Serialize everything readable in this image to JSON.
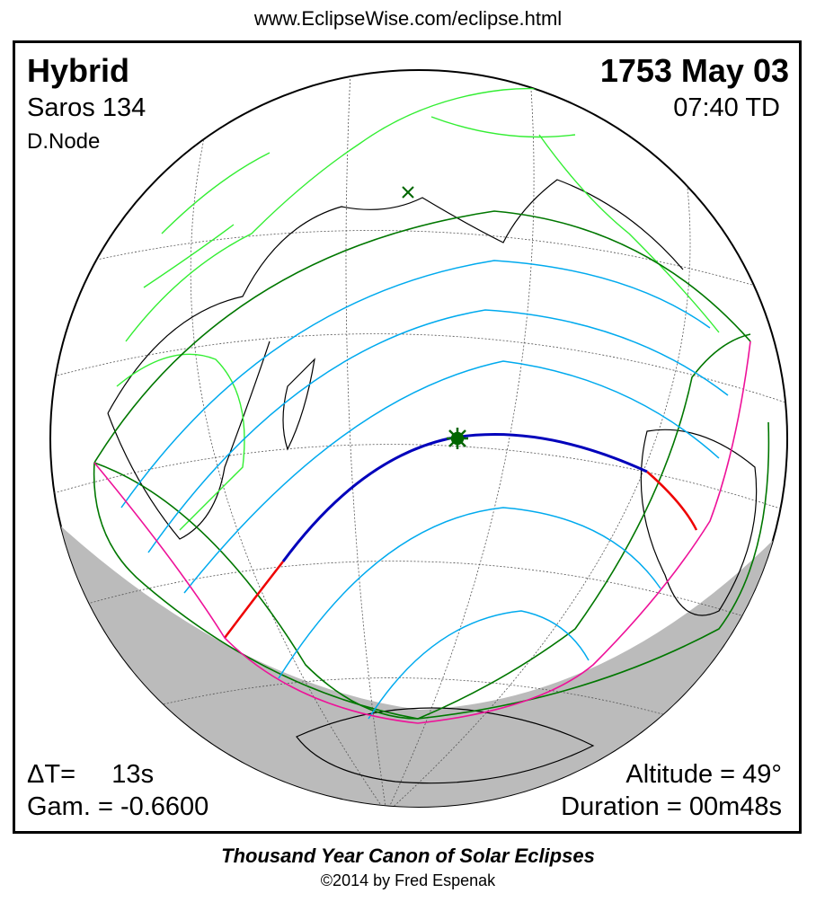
{
  "header": {
    "url": "www.EclipseWise.com/eclipse.html"
  },
  "info": {
    "type": "Hybrid",
    "saros": "Saros 134",
    "node": "D.Node",
    "date": "1753 May 03",
    "time": "07:40 TD",
    "delta_t": "ΔT=     13s",
    "gamma": "Gam. = -0.6600",
    "altitude": "Altitude = 49°",
    "duration": "Duration = 00m48s"
  },
  "footer": {
    "canon": "Thousand Year Canon of Solar Eclipses",
    "copyright": "©2014 by Fred Espenak"
  },
  "colors": {
    "borders": "#33ee33",
    "coast": "#000000",
    "penumbral_limits": "#007700",
    "magnitude_curves": "#00aaee",
    "central_path_annular": "#0000bb",
    "central_path_total": "#ee0000",
    "rise_set_curves": "#ee1199",
    "night_shade": "#bbbbbb"
  }
}
